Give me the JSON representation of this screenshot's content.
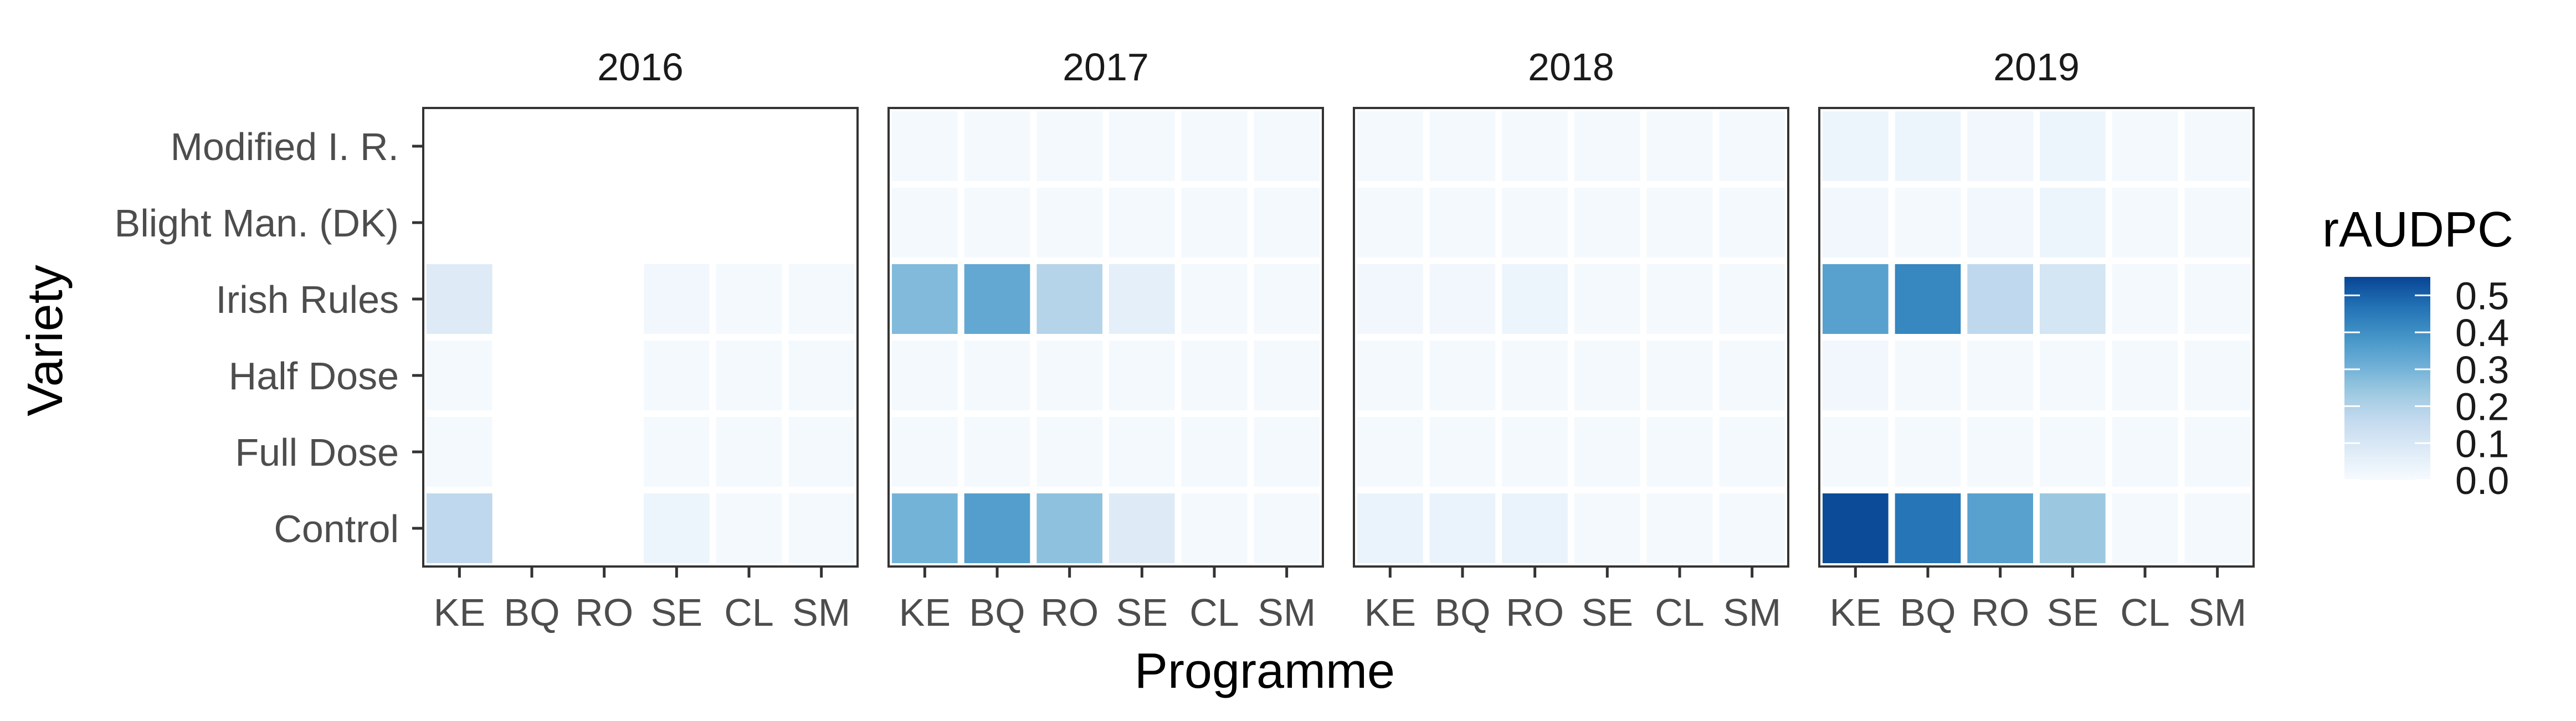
{
  "chart_data": {
    "type": "heatmap",
    "xlabel": "Programme",
    "ylabel": "Variety",
    "legend_title": "rAUDPC",
    "legend_placement": "right",
    "categories_x": [
      "KE",
      "BQ",
      "RO",
      "SE",
      "CL",
      "SM"
    ],
    "categories_y": [
      "Modified I. R.",
      "Blight Man. (DK)",
      "Irish Rules",
      "Half Dose",
      "Full Dose",
      "Control"
    ],
    "color_range": [
      0,
      0.55
    ],
    "color_ticks": [
      "0.0",
      "0.1",
      "0.2",
      "0.3",
      "0.4",
      "0.5"
    ],
    "color_tick_values": [
      0,
      0.1,
      0.2,
      0.3,
      0.4,
      0.5
    ],
    "colors": [
      "#f7fbff",
      "#deebf7",
      "#c6dbef",
      "#9ecae1",
      "#6baed6",
      "#4292c6",
      "#2171b5",
      "#084594"
    ],
    "facets": [
      {
        "title": "2016",
        "values": [
          [
            null,
            null,
            null,
            null,
            null,
            null
          ],
          [
            null,
            null,
            null,
            null,
            null,
            null
          ],
          [
            0.08,
            null,
            null,
            0.02,
            0.01,
            0.01
          ],
          [
            0.01,
            null,
            null,
            0.01,
            0.01,
            0.01
          ],
          [
            0.01,
            null,
            null,
            0.01,
            0.01,
            0.01
          ],
          [
            0.17,
            null,
            null,
            0.03,
            0.01,
            0.01
          ]
        ]
      },
      {
        "title": "2017",
        "values": [
          [
            0.01,
            0.01,
            0.01,
            0.01,
            0.01,
            0.01
          ],
          [
            0.01,
            0.01,
            0.01,
            0.01,
            0.01,
            0.01
          ],
          [
            0.28,
            0.33,
            0.19,
            0.06,
            0.01,
            0.01
          ],
          [
            0.01,
            0.01,
            0.01,
            0.01,
            0.01,
            0.01
          ],
          [
            0.01,
            0.01,
            0.01,
            0.01,
            0.01,
            0.01
          ],
          [
            0.3,
            0.36,
            0.26,
            0.08,
            0.01,
            0.01
          ]
        ]
      },
      {
        "title": "2018",
        "values": [
          [
            0.01,
            0.01,
            0.01,
            0.01,
            0.01,
            0.01
          ],
          [
            0.01,
            0.01,
            0.01,
            0.01,
            0.01,
            0.01
          ],
          [
            0.02,
            0.02,
            0.03,
            0.01,
            0.01,
            0.01
          ],
          [
            0.01,
            0.01,
            0.01,
            0.01,
            0.01,
            0.01
          ],
          [
            0.01,
            0.01,
            0.01,
            0.01,
            0.01,
            0.01
          ],
          [
            0.04,
            0.04,
            0.04,
            0.01,
            0.01,
            0.01
          ]
        ]
      },
      {
        "title": "2019",
        "values": [
          [
            0.03,
            0.03,
            0.02,
            0.03,
            0.01,
            0.01
          ],
          [
            0.02,
            0.01,
            0.02,
            0.03,
            0.01,
            0.01
          ],
          [
            0.35,
            0.42,
            0.17,
            0.11,
            0.01,
            0.01
          ],
          [
            0.02,
            0.01,
            0.01,
            0.01,
            0.01,
            0.01
          ],
          [
            0.01,
            0.01,
            0.01,
            0.01,
            0.01,
            0.01
          ],
          [
            0.54,
            0.46,
            0.35,
            0.24,
            0.01,
            0.01
          ]
        ]
      }
    ]
  }
}
